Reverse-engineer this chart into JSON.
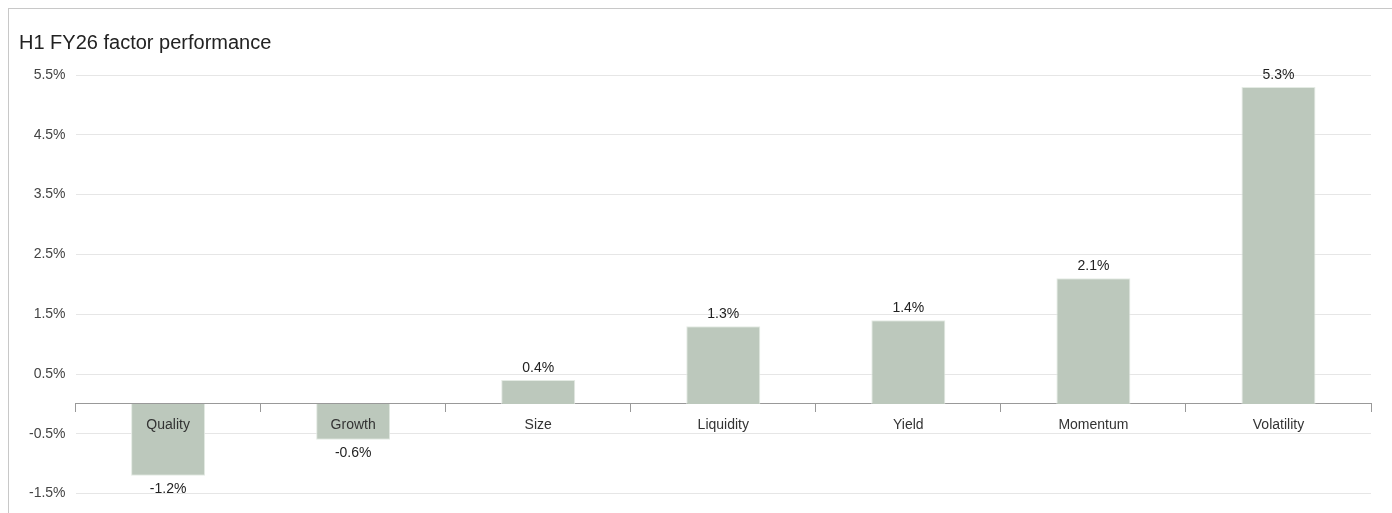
{
  "chart_data": {
    "type": "bar",
    "title": "H1 FY26 factor performance",
    "categories": [
      "Quality",
      "Growth",
      "Size",
      "Liquidity",
      "Yield",
      "Momentum",
      "Volatility"
    ],
    "values": [
      -1.2,
      -0.6,
      0.4,
      1.3,
      1.4,
      2.1,
      5.3
    ],
    "value_labels": [
      "-1.2%",
      "-0.6%",
      "0.4%",
      "1.3%",
      "1.4%",
      "2.1%",
      "5.3%"
    ],
    "color": "#bcc8bc",
    "ylim": [
      -1.5,
      5.5
    ],
    "yticks": [
      {
        "value": -1.5,
        "label": "-1.5%"
      },
      {
        "value": -0.5,
        "label": "-0.5%"
      },
      {
        "value": 0.5,
        "label": "0.5%"
      },
      {
        "value": 1.5,
        "label": "1.5%"
      },
      {
        "value": 2.5,
        "label": "2.5%"
      },
      {
        "value": 3.5,
        "label": "3.5%"
      },
      {
        "value": 4.5,
        "label": "4.5%"
      },
      {
        "value": 5.5,
        "label": "5.5%"
      }
    ],
    "grid": "y",
    "legend": false
  }
}
